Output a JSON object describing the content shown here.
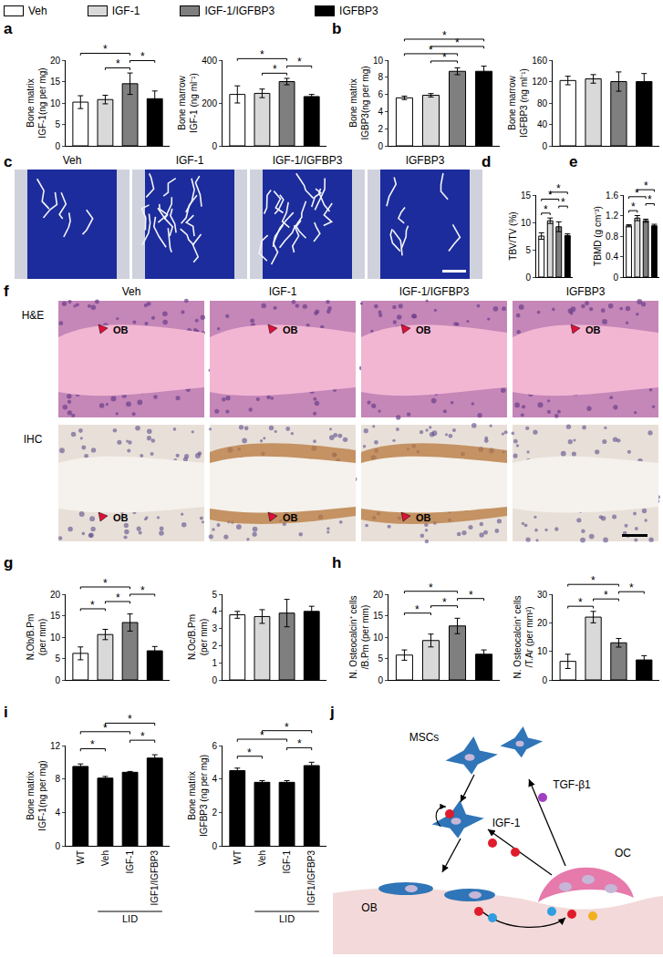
{
  "figure": {
    "panel_labels": [
      "a",
      "b",
      "c",
      "d",
      "e",
      "f",
      "g",
      "h",
      "i",
      "j"
    ],
    "legend": [
      {
        "name": "Veh",
        "color": "#ffffff"
      },
      {
        "name": "IGF-1",
        "color": "#d9d9d9"
      },
      {
        "name": "IGF-1/IGFBP3",
        "color": "#7f7f7f"
      },
      {
        "name": "IGFBP3",
        "color": "#000000"
      }
    ],
    "significance_mark": "*",
    "ct_images": {
      "labels": [
        "Veh",
        "IGF-1",
        "IGF-1/IGFBP3",
        "IGFBP3"
      ]
    },
    "histology": {
      "columns": [
        "Veh",
        "IGF-1",
        "IGF-1/IGFBP3",
        "IGFBP3"
      ],
      "rows": [
        "H&E",
        "IHC"
      ],
      "labels": [
        [
          "OB",
          "OB",
          "OB",
          "OB"
        ],
        [
          "OB",
          "OB",
          "OB",
          null
        ]
      ]
    },
    "diagram": {
      "labels": {
        "msc": "MSCs",
        "tgf": "TGF-β1",
        "igf": "IGF-1",
        "oc": "OC",
        "ob": "OB"
      }
    }
  },
  "chart_data": [
    {
      "type": "bar",
      "ylabel": [
        "Bone matrix",
        "IGF-1(ng per mg)"
      ],
      "categories": [
        "Veh",
        "IGF-1",
        "IGF-1/IGFBP3",
        "IGFBP3"
      ],
      "colors": [
        "#ffffff",
        "#d9d9d9",
        "#7f7f7f",
        "#000000"
      ],
      "values": [
        10.2,
        10.8,
        14.5,
        11.0
      ],
      "errors": [
        1.5,
        1.0,
        2.5,
        1.8
      ],
      "ylim": [
        0,
        20
      ],
      "yticks": [
        0,
        5,
        10,
        15,
        20
      ],
      "tick_labels": "y",
      "significance": [
        [
          0,
          2
        ],
        [
          1,
          2
        ],
        [
          2,
          3
        ]
      ]
    },
    {
      "type": "bar",
      "ylabel": [
        "Bone marrow",
        "IGF-1 (ng ml⁻¹)"
      ],
      "categories": [
        "Veh",
        "IGF-1",
        "IGF-1/IGFBP3",
        "IGFBP3"
      ],
      "colors": [
        "#ffffff",
        "#d9d9d9",
        "#7f7f7f",
        "#000000"
      ],
      "values": [
        240,
        245,
        300,
        230
      ],
      "errors": [
        40,
        20,
        15,
        10
      ],
      "ylim": [
        0,
        400
      ],
      "yticks": [
        0,
        200,
        400
      ],
      "tick_labels": "y",
      "significance": [
        [
          0,
          2
        ],
        [
          1,
          2
        ],
        [
          2,
          3
        ]
      ]
    },
    {
      "type": "bar",
      "ylabel": [
        "Bone matrix",
        "IGBP3(ng per mg)"
      ],
      "categories": [
        "Veh",
        "IGF-1",
        "IGF-1/IGFBP3",
        "IGFBP3"
      ],
      "colors": [
        "#ffffff",
        "#d9d9d9",
        "#7f7f7f",
        "#000000"
      ],
      "values": [
        5.6,
        5.9,
        8.7,
        8.7
      ],
      "errors": [
        0.2,
        0.2,
        0.4,
        0.6
      ],
      "ylim": [
        0,
        10
      ],
      "yticks": [
        0,
        2,
        4,
        6,
        8,
        10
      ],
      "tick_labels": "y",
      "significance": [
        [
          0,
          2
        ],
        [
          0,
          3
        ],
        [
          1,
          2
        ],
        [
          1,
          3
        ]
      ]
    },
    {
      "type": "bar",
      "ylabel": [
        "Bone marrow",
        "IGFBP3 (ng ml⁻¹)"
      ],
      "categories": [
        "Veh",
        "IGF-1",
        "IGF-1/IGFBP3",
        "IGFBP3"
      ],
      "colors": [
        "#ffffff",
        "#d9d9d9",
        "#7f7f7f",
        "#000000"
      ],
      "values": [
        122,
        125,
        120,
        120
      ],
      "errors": [
        8,
        8,
        18,
        15
      ],
      "ylim": [
        0,
        160
      ],
      "yticks": [
        0,
        40,
        80,
        120,
        160
      ],
      "tick_labels": "y"
    },
    {
      "type": "bar",
      "ylabel": [
        "TBV/TV (%)"
      ],
      "categories": [
        "Veh",
        "IGF-1",
        "IGF-1/IGFBP3",
        "IGFBP3"
      ],
      "colors": [
        "#ffffff",
        "#d9d9d9",
        "#7f7f7f",
        "#000000"
      ],
      "values": [
        7.5,
        10.3,
        9.2,
        7.6
      ],
      "errors": [
        0.6,
        0.5,
        0.9,
        0.3
      ],
      "ylim": [
        0,
        15
      ],
      "yticks": [
        0,
        5,
        10,
        15
      ],
      "tick_labels": "y",
      "significance": [
        [
          0,
          1
        ],
        [
          0,
          2
        ],
        [
          1,
          3
        ],
        [
          2,
          3
        ]
      ]
    },
    {
      "type": "bar",
      "ylabel": [
        "TBMD (g cm⁻³)"
      ],
      "categories": [
        "Veh",
        "IGF-1",
        "IGF-1/IGFBP3",
        "IGFBP3"
      ],
      "colors": [
        "#ffffff",
        "#d9d9d9",
        "#7f7f7f",
        "#000000"
      ],
      "values": [
        1.0,
        1.15,
        1.1,
        1.0
      ],
      "errors": [
        0.02,
        0.05,
        0.03,
        0.03
      ],
      "ylim": [
        0,
        1.6
      ],
      "yticks": [
        0,
        0.4,
        0.8,
        1.2,
        1.6
      ],
      "tick_labels": "y",
      "significance": [
        [
          0,
          1
        ],
        [
          0,
          2
        ],
        [
          1,
          3
        ],
        [
          2,
          3
        ]
      ]
    },
    {
      "type": "bar",
      "ylabel": [
        "N.Ob/B.Pm",
        "(per mm)"
      ],
      "categories": [
        "Veh",
        "IGF-1",
        "IGF-1/IGFBP3",
        "IGFBP3"
      ],
      "colors": [
        "#ffffff",
        "#d9d9d9",
        "#7f7f7f",
        "#000000"
      ],
      "values": [
        6.2,
        10.6,
        13.4,
        6.8
      ],
      "errors": [
        1.5,
        1.2,
        2.0,
        1.0
      ],
      "ylim": [
        0,
        20
      ],
      "yticks": [
        0,
        5,
        10,
        15,
        20
      ],
      "tick_labels": "y",
      "significance": [
        [
          0,
          1
        ],
        [
          0,
          2
        ],
        [
          1,
          2
        ],
        [
          2,
          3
        ]
      ]
    },
    {
      "type": "bar",
      "ylabel": [
        "N.Oc/B.Pm",
        "(per mm)"
      ],
      "categories": [
        "Veh",
        "IGF-1",
        "IGF-1/IGFBP3",
        "IGFBP3"
      ],
      "colors": [
        "#ffffff",
        "#d9d9d9",
        "#7f7f7f",
        "#000000"
      ],
      "values": [
        3.8,
        3.7,
        3.9,
        4.0
      ],
      "errors": [
        0.2,
        0.4,
        0.8,
        0.3
      ],
      "ylim": [
        0,
        5
      ],
      "yticks": [
        0,
        1,
        2,
        3,
        4,
        5
      ],
      "tick_labels": "y"
    },
    {
      "type": "bar",
      "ylabel": [
        "N. Osteocalcin⁺ cells",
        "/B.Pm (per mm)"
      ],
      "categories": [
        "Veh",
        "IGF-1",
        "IGF-1/IGFBP3",
        "IGFBP3"
      ],
      "colors": [
        "#ffffff",
        "#d9d9d9",
        "#7f7f7f",
        "#000000"
      ],
      "values": [
        5.8,
        9.2,
        12.6,
        6.0
      ],
      "errors": [
        1.2,
        1.5,
        1.8,
        1.0
      ],
      "ylim": [
        0,
        20
      ],
      "yticks": [
        0,
        5,
        10,
        15,
        20
      ],
      "tick_labels": "y",
      "significance": [
        [
          0,
          1
        ],
        [
          0,
          2
        ],
        [
          1,
          2
        ],
        [
          2,
          3
        ]
      ]
    },
    {
      "type": "bar",
      "ylabel": [
        "N. Osteocalcin⁺ cells",
        "/T.Ar (per mm²)"
      ],
      "categories": [
        "Veh",
        "IGF-1",
        "IGF-1/IGFBP3",
        "IGFBP3"
      ],
      "colors": [
        "#ffffff",
        "#d9d9d9",
        "#7f7f7f",
        "#000000"
      ],
      "values": [
        6.5,
        22,
        13,
        7
      ],
      "errors": [
        2.5,
        2.0,
        1.5,
        1.5
      ],
      "ylim": [
        0,
        30
      ],
      "yticks": [
        0,
        10,
        20,
        30
      ],
      "tick_labels": "y",
      "significance": [
        [
          0,
          1
        ],
        [
          0,
          2
        ],
        [
          1,
          2
        ],
        [
          2,
          3
        ]
      ]
    },
    {
      "type": "bar",
      "ylabel": [
        "Bone matrix",
        "IGF-1(ng per mg)"
      ],
      "categories": [
        "WT",
        "Veh",
        "IGF-1",
        "IGF1/IGFBP3"
      ],
      "color": "#000000",
      "values": [
        9.5,
        8.1,
        8.8,
        10.5
      ],
      "errors": [
        0.3,
        0.2,
        0.1,
        0.4
      ],
      "ylim": [
        0,
        12
      ],
      "yticks": [
        0,
        4,
        8,
        12
      ],
      "significance": [
        [
          0,
          1
        ],
        [
          0,
          2
        ],
        [
          1,
          3
        ],
        [
          2,
          3
        ]
      ],
      "annotations": [
        {
          "text": "LID",
          "from": "Veh",
          "to": "IGF1/IGFBP3"
        }
      ]
    },
    {
      "type": "bar",
      "ylabel": [
        "Bone matrix",
        "IGFBP3 (ng per mg)"
      ],
      "categories": [
        "WT",
        "Veh",
        "IGF-1",
        "IGF1/IGFBP3"
      ],
      "color": "#000000",
      "values": [
        4.5,
        3.8,
        3.8,
        4.8
      ],
      "errors": [
        0.15,
        0.1,
        0.1,
        0.2
      ],
      "ylim": [
        0,
        6
      ],
      "yticks": [
        0,
        2,
        4,
        6
      ],
      "significance": [
        [
          0,
          1
        ],
        [
          0,
          2
        ],
        [
          1,
          3
        ],
        [
          2,
          3
        ]
      ],
      "annotations": [
        {
          "text": "LID",
          "from": "Veh",
          "to": "IGF1/IGFBP3"
        }
      ]
    }
  ]
}
